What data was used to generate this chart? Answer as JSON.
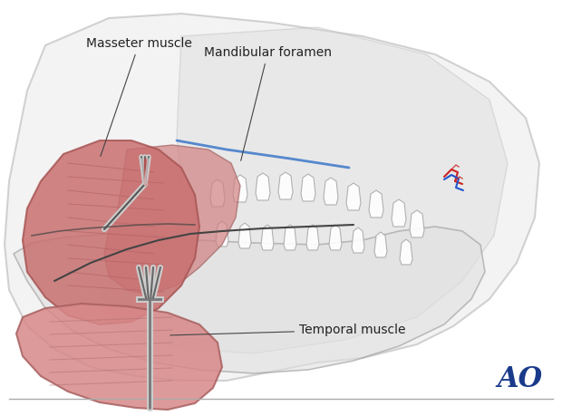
{
  "title": "",
  "background_color": "#ffffff",
  "label_masseter": "Masseter muscle",
  "label_foramen": "Mandibular foramen",
  "label_temporal": "Temporal muscle",
  "ao_text": "AO",
  "ao_color": "#1a3a8a",
  "label_color": "#222222",
  "muscle_fill": "#c97070",
  "muscle_dark": "#a85555",
  "bone_fill": "#e8e8e8",
  "fig_width": 6.2,
  "fig_height": 4.59,
  "dpi": 100
}
